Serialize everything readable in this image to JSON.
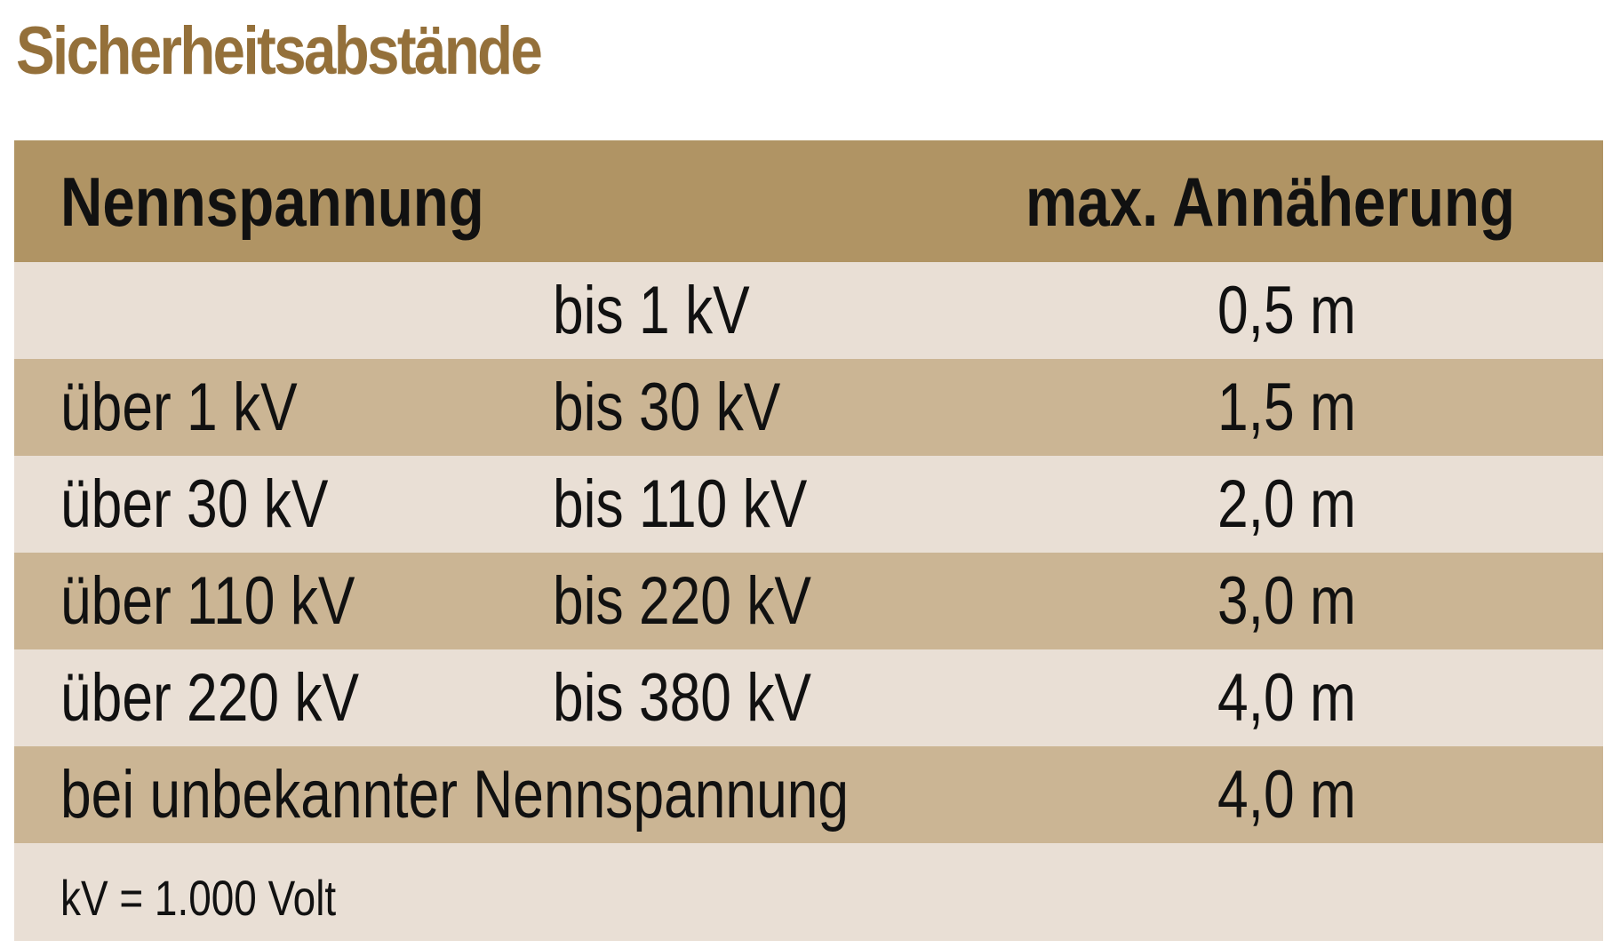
{
  "title": "Sicherheitsabstände",
  "colors": {
    "title": "#94703a",
    "header_bg": "#b09464",
    "row_light": "#e9dfd5",
    "row_dark": "#cbb594",
    "text": "#111111"
  },
  "table": {
    "header": {
      "voltage": "Nennspannung",
      "distance": "max. Annäherung"
    },
    "rows": [
      {
        "from": "",
        "to": "bis 1 kV",
        "distance": "0,5 m"
      },
      {
        "from": "über 1 kV",
        "to": "bis 30 kV",
        "distance": "1,5 m"
      },
      {
        "from": "über 30 kV",
        "to": "bis 110 kV",
        "distance": "2,0 m"
      },
      {
        "from": "über 110 kV",
        "to": "bis 220 kV",
        "distance": "3,0 m"
      },
      {
        "from": "über 220 kV",
        "to": "bis 380 kV",
        "distance": "4,0 m"
      },
      {
        "from": "bei unbekannter Nennspannung",
        "to": "",
        "distance": "4,0 m"
      }
    ],
    "footnote": "kV = 1.000 Volt"
  }
}
